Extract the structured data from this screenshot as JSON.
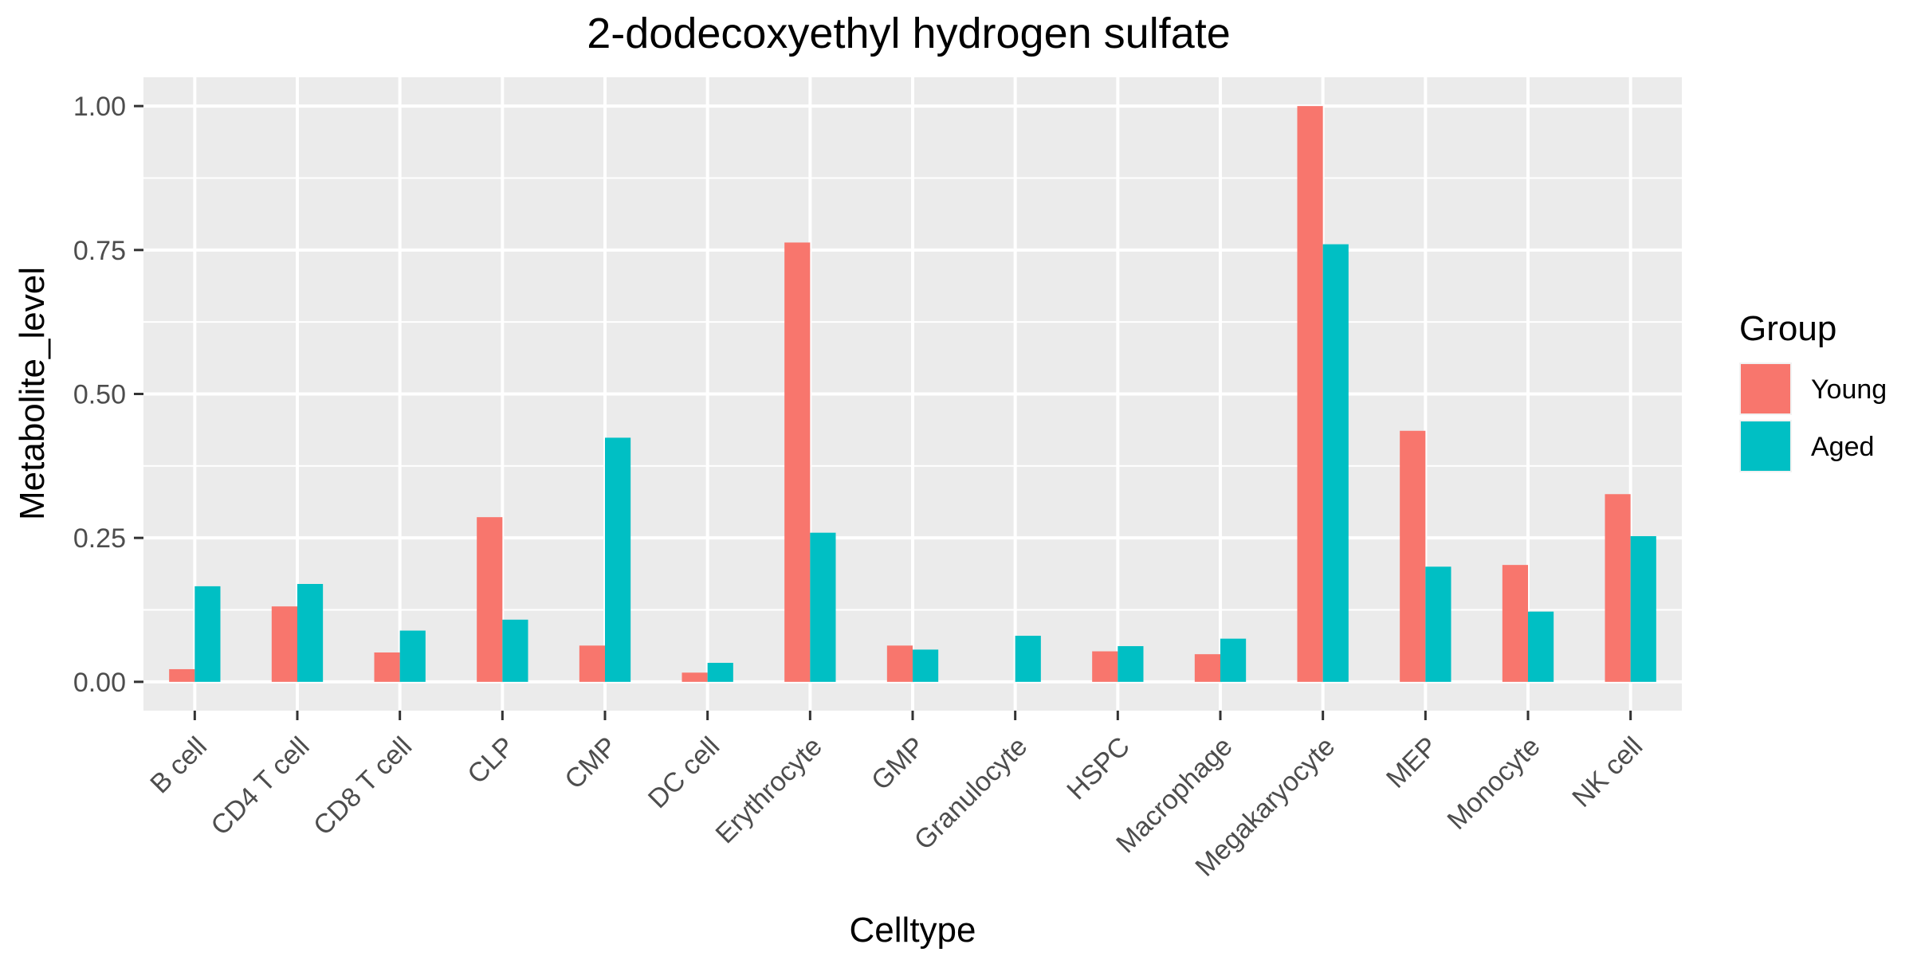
{
  "chart_data": {
    "type": "bar",
    "title": "2-dodecoxyethyl hydrogen sulfate",
    "xlabel": "Celltype",
    "ylabel": "Metabolite_level",
    "categories": [
      "B cell",
      "CD4 T cell",
      "CD8 T cell",
      "CLP",
      "CMP",
      "DC cell",
      "Erythrocyte",
      "GMP",
      "Granulocyte",
      "HSPC",
      "Macrophage",
      "Megakaryocyte",
      "MEP",
      "Monocyte",
      "NK cell"
    ],
    "series": [
      {
        "name": "Young",
        "color": "#F8766D",
        "values": [
          0.022,
          0.131,
          0.051,
          0.286,
          0.063,
          0.016,
          0.763,
          0.063,
          null,
          0.053,
          0.048,
          1.0,
          0.436,
          0.203,
          0.326
        ]
      },
      {
        "name": "Aged",
        "color": "#00BFC4",
        "values": [
          0.166,
          0.17,
          0.089,
          0.108,
          0.424,
          0.033,
          0.259,
          0.056,
          0.08,
          0.062,
          0.075,
          0.76,
          0.2,
          0.122,
          0.253
        ]
      }
    ],
    "ylim": [
      -0.05,
      1.05
    ],
    "yticks": [
      0.0,
      0.25,
      0.5,
      0.75,
      1.0
    ],
    "ytick_labels": [
      "0.00",
      "0.25",
      "0.50",
      "0.75",
      "1.00"
    ],
    "legend": {
      "title": "Group",
      "position": "right"
    },
    "grid": true,
    "panel_background": "#EBEBEB"
  }
}
